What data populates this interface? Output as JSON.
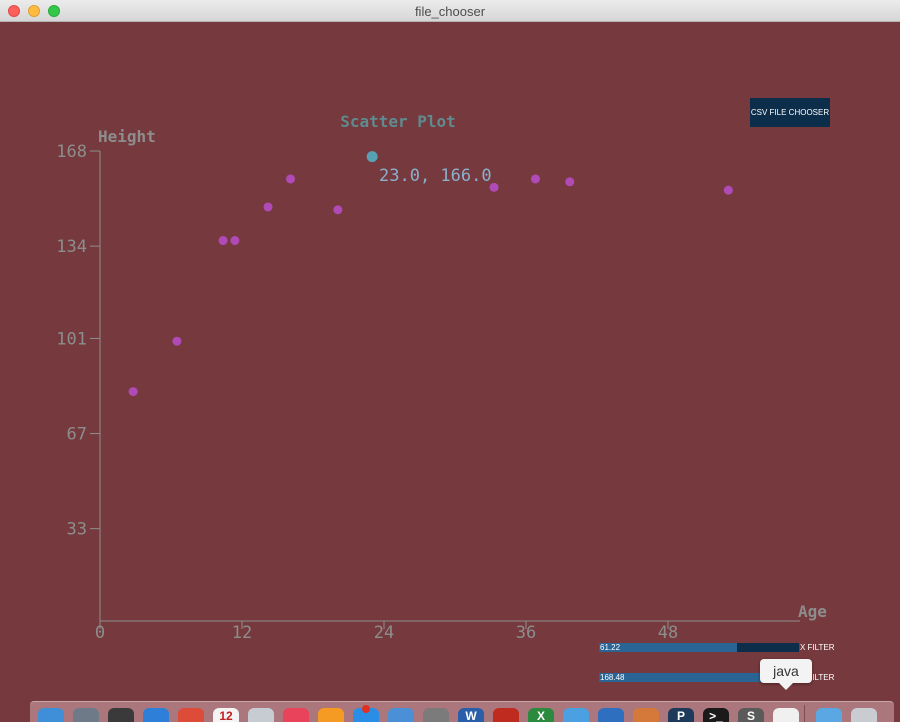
{
  "window": {
    "title": "file_chooser"
  },
  "chart_data": {
    "type": "scatter",
    "title": "Scatter Plot",
    "xlabel": "Age",
    "ylabel": "Height",
    "xlim": [
      0,
      60
    ],
    "ylim": [
      0,
      168
    ],
    "x_ticks": [
      0,
      12,
      24,
      36,
      48
    ],
    "y_ticks": [
      33,
      67,
      101,
      134,
      168
    ],
    "points": [
      {
        "x": 2.8,
        "y": 82
      },
      {
        "x": 6.5,
        "y": 100
      },
      {
        "x": 10.4,
        "y": 136
      },
      {
        "x": 11.4,
        "y": 136
      },
      {
        "x": 14.2,
        "y": 148
      },
      {
        "x": 16.1,
        "y": 158
      },
      {
        "x": 20.1,
        "y": 147
      },
      {
        "x": 33.3,
        "y": 155
      },
      {
        "x": 36.8,
        "y": 158
      },
      {
        "x": 39.7,
        "y": 157
      },
      {
        "x": 53.1,
        "y": 154
      }
    ],
    "highlighted_point": {
      "x": 23.0,
      "y": 166.0,
      "label": "23.0, 166.0"
    },
    "point_color": "#b04ab7",
    "highlight_color": "#58a1b5"
  },
  "controls": {
    "csv_button_label": "CSV FILE CHOOSER",
    "x_filter": {
      "value_label": "61.22",
      "fill_fraction": 0.69,
      "label": "X FILTER"
    },
    "y_filter": {
      "value_label": "168.48",
      "fill_fraction": 0.83,
      "label": "Y FILTER"
    }
  },
  "tooltip": {
    "text": "java"
  },
  "dock": {
    "icons": [
      {
        "name": "finder-icon",
        "color": "#3f8fd8",
        "glyph": ""
      },
      {
        "name": "launchpad-icon",
        "color": "#6e7a88",
        "glyph": ""
      },
      {
        "name": "mission-control-icon",
        "color": "#3a3a3a",
        "glyph": ""
      },
      {
        "name": "safari-icon",
        "color": "#2d7fd8",
        "glyph": ""
      },
      {
        "name": "chrome-icon",
        "color": "#dd4b39",
        "glyph": ""
      },
      {
        "name": "calendar-icon",
        "color": "#f4f4f4",
        "glyph": "12"
      },
      {
        "name": "preview-icon",
        "color": "#c7ccd2",
        "glyph": ""
      },
      {
        "name": "itunes-icon",
        "color": "#e8435a",
        "glyph": ""
      },
      {
        "name": "ibooks-icon",
        "color": "#f59a23",
        "glyph": ""
      },
      {
        "name": "app-store-icon",
        "color": "#2a8ee6",
        "glyph": "",
        "badge": "1"
      },
      {
        "name": "xcode-icon",
        "color": "#4b8fd6",
        "glyph": ""
      },
      {
        "name": "system-preferences-icon",
        "color": "#7b7b7b",
        "glyph": ""
      },
      {
        "name": "word-icon",
        "color": "#2b5ea8",
        "glyph": "W"
      },
      {
        "name": "filezilla-icon",
        "color": "#c02b20",
        "glyph": ""
      },
      {
        "name": "excel-icon",
        "color": "#2b8a3e",
        "glyph": "X"
      },
      {
        "name": "browser-icon",
        "color": "#4aa0e0",
        "glyph": ""
      },
      {
        "name": "outlook-icon",
        "color": "#2f6fc0",
        "glyph": ""
      },
      {
        "name": "eclipse-icon",
        "color": "#d4793a",
        "glyph": ""
      },
      {
        "name": "processing-icon",
        "color": "#1e3a5a",
        "glyph": "P"
      },
      {
        "name": "terminal-icon",
        "color": "#1a1a1a",
        "glyph": ">_"
      },
      {
        "name": "sublime-icon",
        "color": "#5a5a5a",
        "glyph": "S"
      },
      {
        "name": "java-icon",
        "color": "#f0f0f0",
        "glyph": ""
      },
      {
        "name": "folder-icon",
        "color": "#5aa7e4",
        "glyph": ""
      },
      {
        "name": "trash-icon",
        "color": "#c9cdd2",
        "glyph": ""
      }
    ]
  }
}
